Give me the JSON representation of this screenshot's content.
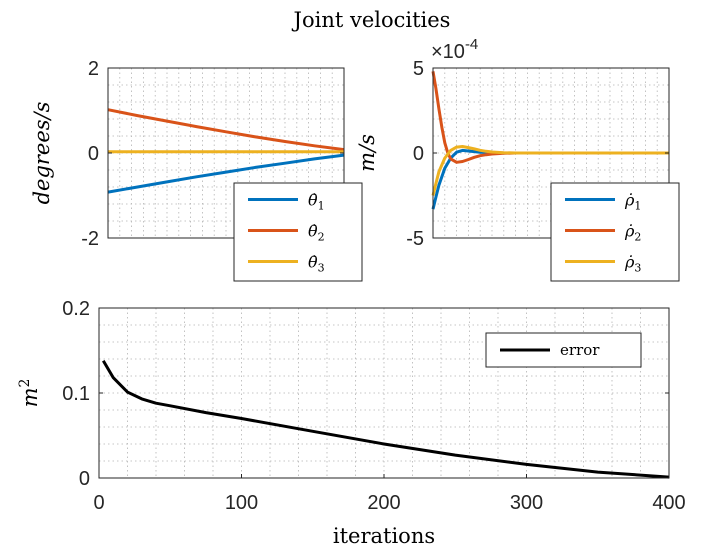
{
  "figure_title": "Joint velocities",
  "chart_data": [
    {
      "type": "line",
      "ylabel": "degrees/s",
      "ylim": [
        -2,
        2
      ],
      "yticks": [
        "2",
        "0",
        "-2"
      ],
      "ytick_values": [
        2,
        0,
        -2
      ],
      "xlim": [
        0,
        400
      ],
      "grid": true,
      "legend": "bottom-right",
      "series": [
        {
          "name": "θ̇1",
          "label_base": "θ̇",
          "label_sub": "1",
          "color": "#0072BD",
          "x": [
            0,
            50,
            100,
            150,
            200,
            250,
            300,
            350,
            400
          ],
          "values": [
            -0.92,
            -0.8,
            -0.68,
            -0.56,
            -0.45,
            -0.34,
            -0.24,
            -0.14,
            -0.05
          ]
        },
        {
          "name": "θ̇2",
          "label_base": "θ̇",
          "label_sub": "2",
          "color": "#D95319",
          "x": [
            0,
            50,
            100,
            150,
            200,
            250,
            300,
            350,
            400
          ],
          "values": [
            1.02,
            0.88,
            0.75,
            0.62,
            0.5,
            0.38,
            0.27,
            0.17,
            0.08
          ]
        },
        {
          "name": "θ̇3",
          "label_base": "θ̇",
          "label_sub": "3",
          "color": "#EDB120",
          "x": [
            0,
            50,
            100,
            150,
            200,
            250,
            300,
            350,
            400
          ],
          "values": [
            0.03,
            0.03,
            0.03,
            0.03,
            0.03,
            0.03,
            0.03,
            0.03,
            0.03
          ]
        }
      ]
    },
    {
      "type": "line",
      "ylabel": "m/s",
      "exponent_label": "×10",
      "exponent_power": "-4",
      "ylim": [
        -5,
        5
      ],
      "yticks": [
        "5",
        "0",
        "-5"
      ],
      "ytick_values": [
        5,
        0,
        -5
      ],
      "xlim": [
        0,
        400
      ],
      "grid": true,
      "legend": "bottom-right",
      "series": [
        {
          "name": "ρ̇1",
          "label_base": "ρ̇",
          "label_sub": "1",
          "color": "#0072BD",
          "x": [
            0,
            5,
            10,
            20,
            30,
            40,
            50,
            60,
            70,
            80,
            90,
            100,
            120,
            140,
            160,
            200,
            250,
            300,
            400
          ],
          "values": [
            -3.3,
            -2.6,
            -1.9,
            -0.9,
            -0.3,
            0.05,
            0.15,
            0.12,
            0.08,
            0.05,
            0.03,
            0.02,
            0.0,
            0.0,
            0.0,
            0.0,
            0.0,
            0.0,
            0.0
          ]
        },
        {
          "name": "ρ̇2",
          "label_base": "ρ̇",
          "label_sub": "2",
          "color": "#D95319",
          "x": [
            0,
            5,
            10,
            15,
            20,
            25,
            30,
            40,
            50,
            60,
            70,
            80,
            90,
            100,
            120,
            140,
            160,
            200,
            250,
            300,
            400
          ],
          "values": [
            4.8,
            3.8,
            2.6,
            1.5,
            0.6,
            0.0,
            -0.35,
            -0.55,
            -0.5,
            -0.38,
            -0.25,
            -0.16,
            -0.1,
            -0.06,
            -0.02,
            0.0,
            0.0,
            0.0,
            0.0,
            0.0,
            0.0
          ]
        },
        {
          "name": "ρ̇3",
          "label_base": "ρ̇",
          "label_sub": "3",
          "color": "#EDB120",
          "x": [
            0,
            5,
            10,
            20,
            30,
            40,
            50,
            60,
            70,
            80,
            90,
            100,
            120,
            140,
            160,
            200,
            250,
            300,
            400
          ],
          "values": [
            -2.5,
            -1.8,
            -1.1,
            -0.3,
            0.15,
            0.35,
            0.38,
            0.32,
            0.24,
            0.16,
            0.1,
            0.06,
            0.02,
            0.0,
            0.0,
            0.0,
            0.0,
            0.0,
            0.0
          ]
        }
      ]
    },
    {
      "type": "line",
      "ylabel": "m2",
      "ylabel_base": "m",
      "ylabel_power": "2",
      "xlabel": "iterations",
      "ylim": [
        0,
        0.2
      ],
      "yticks": [
        "0.2",
        "0.1",
        "0"
      ],
      "ytick_values": [
        0.2,
        0.1,
        0
      ],
      "xlim": [
        0,
        400
      ],
      "xticks": [
        "0",
        "100",
        "200",
        "300",
        "400"
      ],
      "xtick_values": [
        0,
        100,
        200,
        300,
        400
      ],
      "grid": true,
      "legend": "top-right",
      "series": [
        {
          "name": "error",
          "color": "#000000",
          "x": [
            3,
            10,
            20,
            30,
            40,
            50,
            75,
            100,
            150,
            200,
            250,
            300,
            350,
            400
          ],
          "values": [
            0.138,
            0.118,
            0.101,
            0.093,
            0.088,
            0.085,
            0.077,
            0.07,
            0.055,
            0.04,
            0.027,
            0.016,
            0.007,
            0.001
          ]
        }
      ]
    }
  ]
}
